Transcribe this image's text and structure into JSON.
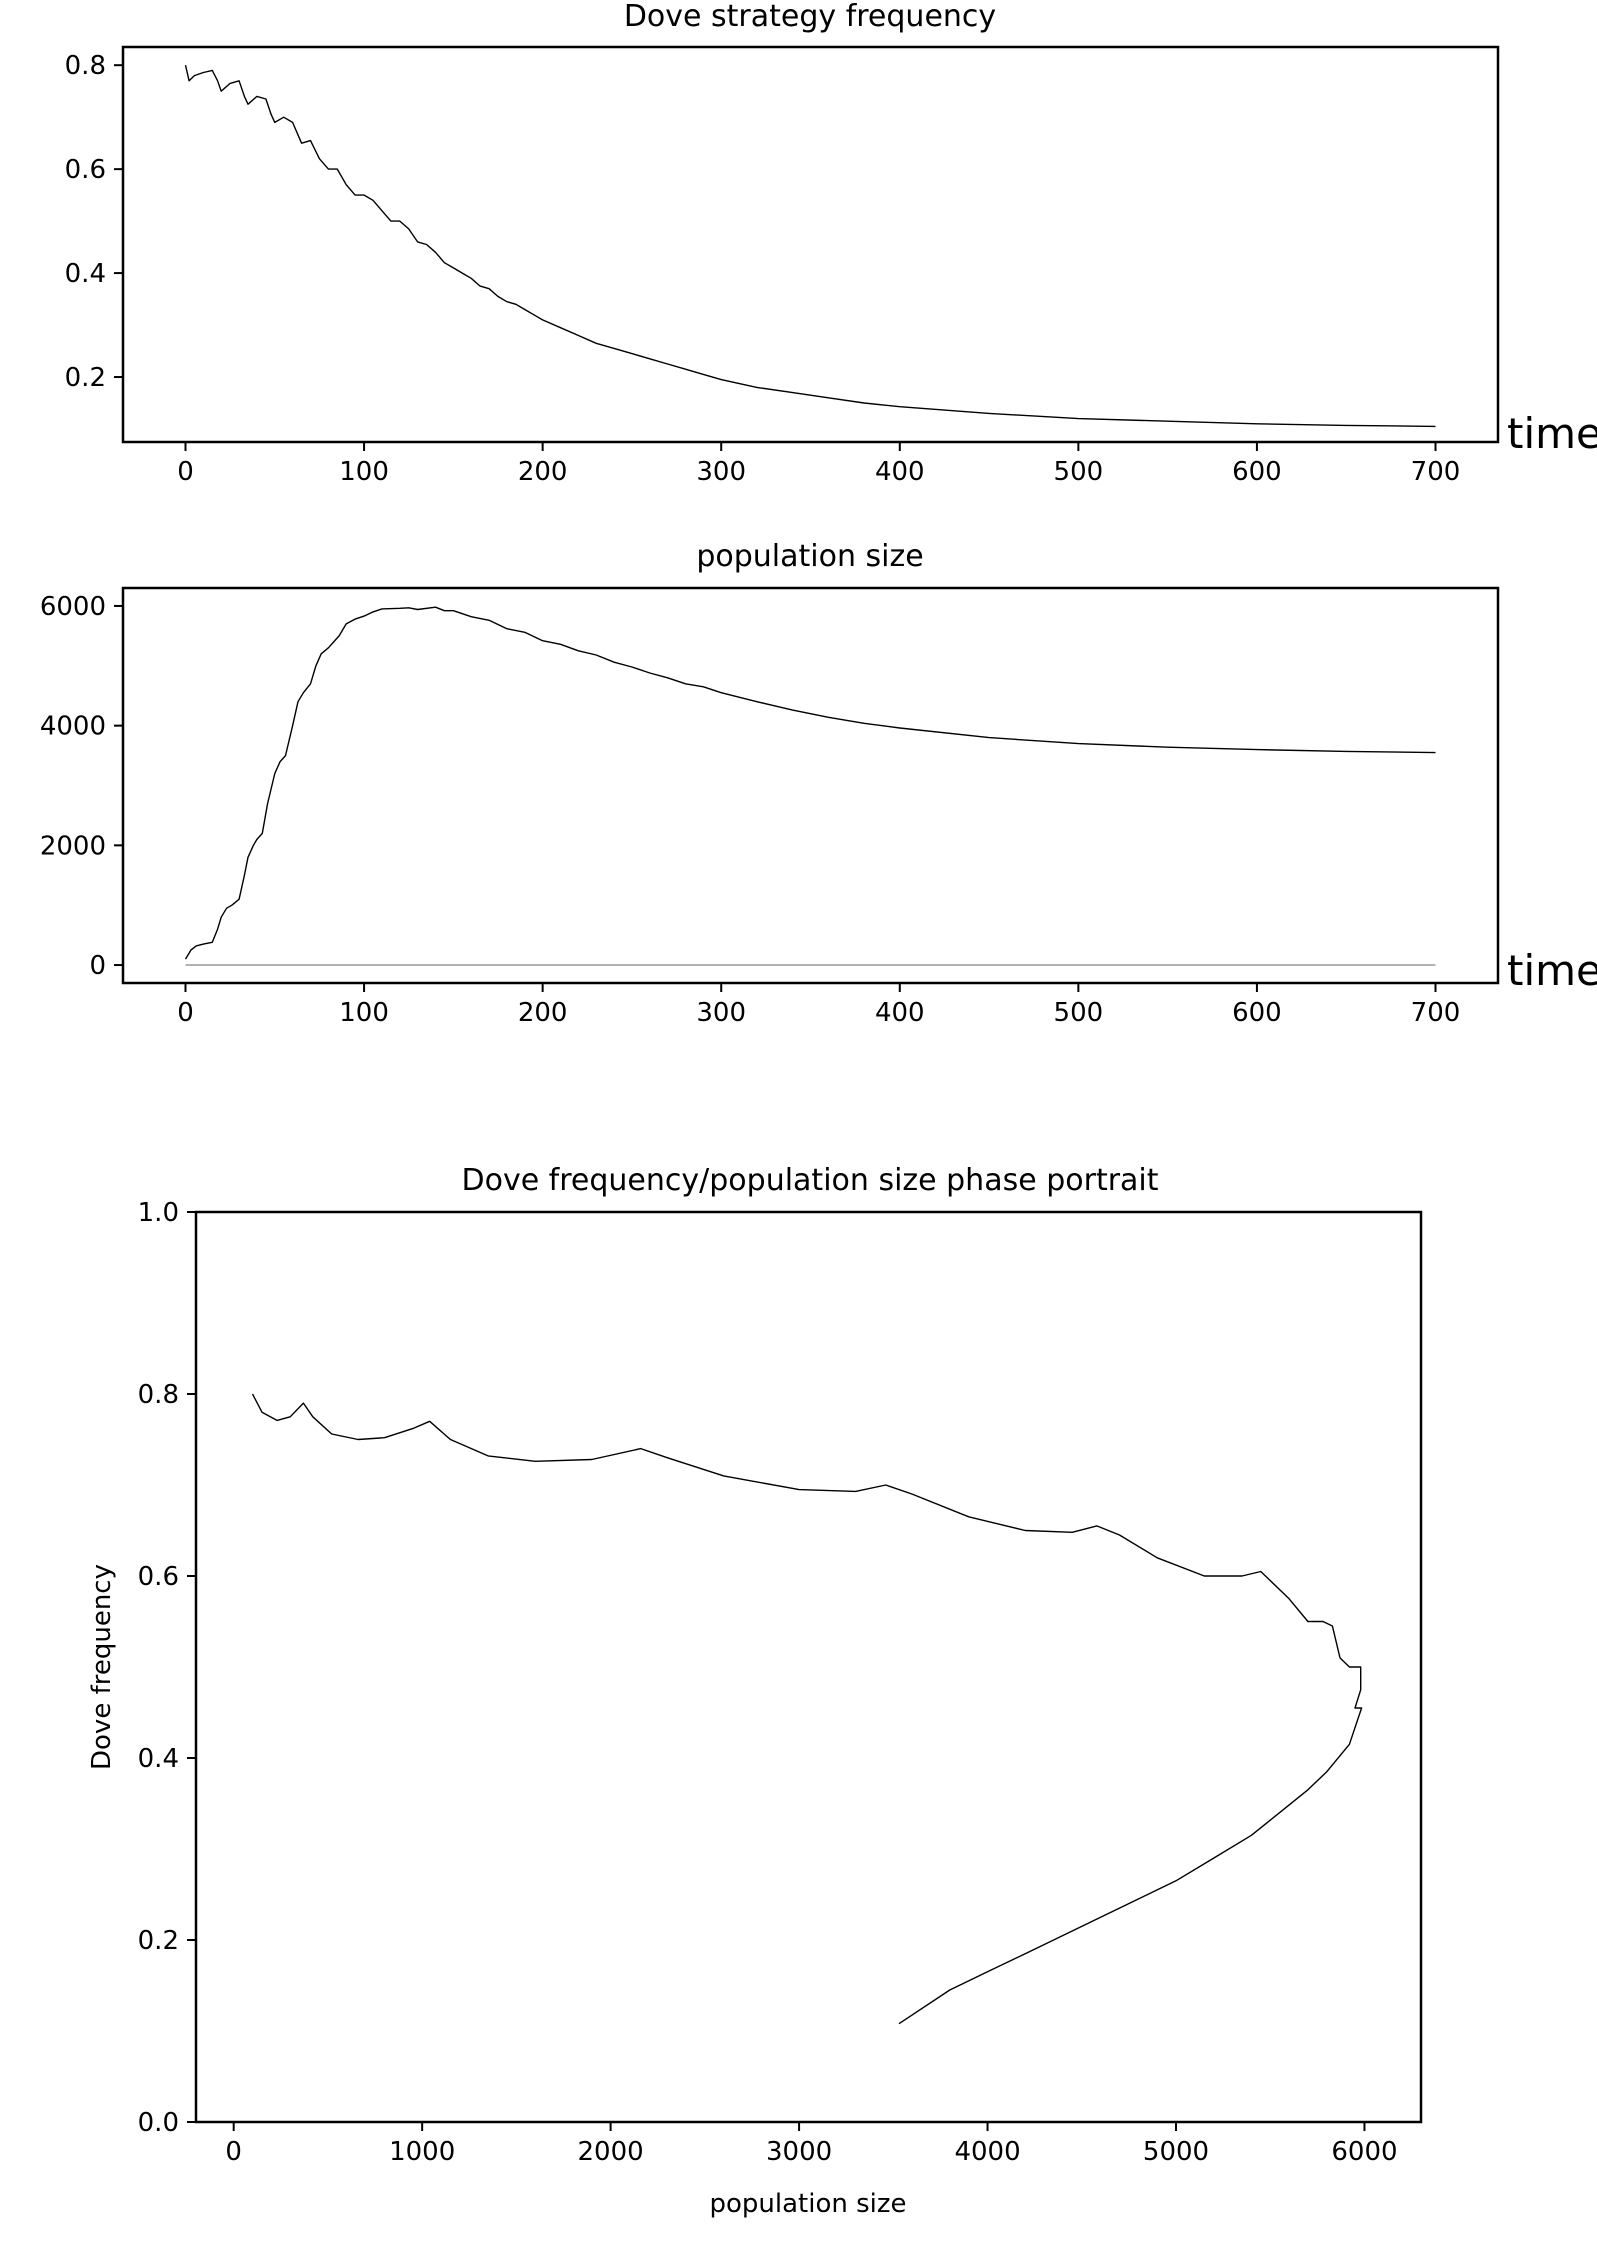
{
  "chart_data": [
    {
      "type": "line",
      "title": "Dove strategy frequency",
      "xlabel": "time",
      "ylabel": "",
      "xlim": [
        -35,
        735
      ],
      "ylim": [
        0.075,
        0.835
      ],
      "xticks": [
        0,
        100,
        200,
        300,
        400,
        500,
        600,
        700
      ],
      "yticks": [
        0.2,
        0.4,
        0.6,
        0.8
      ],
      "xtick_labels": [
        "0",
        "100",
        "200",
        "300",
        "400",
        "500",
        "600",
        "700"
      ],
      "ytick_labels": [
        "0.2",
        "0.4",
        "0.6",
        "0.8"
      ],
      "grid": false,
      "line_color": "#000000",
      "series": [
        {
          "x": [
            0,
            2,
            5,
            10,
            15,
            18,
            20,
            25,
            30,
            33,
            35,
            40,
            45,
            48,
            50,
            55,
            60,
            65,
            70,
            75,
            80,
            85,
            90,
            95,
            100,
            105,
            110,
            115,
            120,
            125,
            130,
            135,
            140,
            145,
            150,
            155,
            160,
            165,
            170,
            175,
            180,
            185,
            190,
            195,
            200,
            210,
            220,
            230,
            240,
            250,
            260,
            270,
            280,
            290,
            300,
            320,
            340,
            360,
            380,
            400,
            450,
            500,
            550,
            600,
            650,
            700
          ],
          "y": [
            0.8,
            0.77,
            0.78,
            0.786,
            0.79,
            0.77,
            0.75,
            0.765,
            0.77,
            0.74,
            0.725,
            0.74,
            0.735,
            0.705,
            0.69,
            0.7,
            0.69,
            0.65,
            0.655,
            0.62,
            0.6,
            0.6,
            0.57,
            0.55,
            0.55,
            0.54,
            0.52,
            0.5,
            0.5,
            0.485,
            0.46,
            0.455,
            0.44,
            0.42,
            0.41,
            0.4,
            0.39,
            0.375,
            0.37,
            0.355,
            0.345,
            0.34,
            0.33,
            0.32,
            0.31,
            0.295,
            0.28,
            0.265,
            0.255,
            0.245,
            0.235,
            0.225,
            0.215,
            0.205,
            0.195,
            0.18,
            0.17,
            0.16,
            0.15,
            0.143,
            0.13,
            0.12,
            0.115,
            0.11,
            0.107,
            0.105
          ]
        }
      ]
    },
    {
      "type": "line",
      "title": "population size",
      "xlabel": "time",
      "ylabel": "",
      "xlim": [
        -35,
        735
      ],
      "ylim": [
        -300,
        6300
      ],
      "xticks": [
        0,
        100,
        200,
        300,
        400,
        500,
        600,
        700
      ],
      "yticks": [
        0,
        2000,
        4000,
        6000
      ],
      "xtick_labels": [
        "0",
        "100",
        "200",
        "300",
        "400",
        "500",
        "600",
        "700"
      ],
      "ytick_labels": [
        "0",
        "2000",
        "4000",
        "6000"
      ],
      "grid": false,
      "line_color": "#000000",
      "baseline_color": "#999999",
      "baseline_value": 0,
      "series": [
        {
          "x": [
            0,
            3,
            6,
            10,
            15,
            18,
            20,
            23,
            26,
            30,
            33,
            35,
            38,
            40,
            43,
            46,
            50,
            53,
            56,
            60,
            63,
            66,
            70,
            73,
            76,
            80,
            83,
            86,
            90,
            95,
            100,
            105,
            110,
            120,
            125,
            130,
            140,
            145,
            150,
            160,
            170,
            180,
            190,
            200,
            210,
            220,
            230,
            240,
            250,
            260,
            270,
            280,
            290,
            300,
            320,
            340,
            360,
            380,
            400,
            450,
            500,
            550,
            600,
            650,
            700
          ],
          "y": [
            100,
            250,
            320,
            350,
            380,
            600,
            800,
            950,
            1000,
            1100,
            1500,
            1800,
            2000,
            2100,
            2200,
            2700,
            3200,
            3400,
            3500,
            4000,
            4400,
            4550,
            4700,
            5000,
            5200,
            5300,
            5400,
            5500,
            5700,
            5780,
            5830,
            5900,
            5950,
            5960,
            5970,
            5940,
            5980,
            5920,
            5920,
            5820,
            5760,
            5620,
            5560,
            5420,
            5360,
            5250,
            5180,
            5060,
            4980,
            4880,
            4800,
            4700,
            4650,
            4550,
            4400,
            4260,
            4140,
            4040,
            3960,
            3800,
            3700,
            3640,
            3600,
            3570,
            3550
          ]
        }
      ]
    },
    {
      "type": "line",
      "title": "Dove frequency/population size phase portrait",
      "xlabel": "population size",
      "ylabel": "Dove frequency",
      "xlim": [
        -200,
        6300
      ],
      "ylim": [
        0,
        1.0
      ],
      "xticks": [
        0,
        1000,
        2000,
        3000,
        4000,
        5000,
        6000
      ],
      "yticks": [
        0.0,
        0.2,
        0.4,
        0.6,
        0.8,
        1.0
      ],
      "xtick_labels": [
        "0",
        "1000",
        "2000",
        "3000",
        "4000",
        "5000",
        "6000"
      ],
      "ytick_labels": [
        "0.0",
        "0.2",
        "0.4",
        "0.6",
        "0.8",
        "1.0"
      ],
      "grid": false,
      "line_color": "#000000",
      "series": [
        {
          "x": [
            100,
            150,
            230,
            300,
            370,
            420,
            520,
            660,
            800,
            950,
            1040,
            1150,
            1350,
            1600,
            1900,
            2160,
            2300,
            2600,
            3000,
            3300,
            3460,
            3600,
            3900,
            4200,
            4450,
            4580,
            4700,
            4900,
            5150,
            5350,
            5450,
            5600,
            5700,
            5780,
            5830,
            5870,
            5920,
            5980,
            5980,
            5950,
            5985,
            5920,
            5900,
            5800,
            5700,
            5550,
            5400,
            5200,
            5000,
            4800,
            4600,
            4400,
            4200,
            4000,
            3800,
            3530
          ],
          "y": [
            0.8,
            0.78,
            0.771,
            0.775,
            0.79,
            0.775,
            0.756,
            0.75,
            0.752,
            0.762,
            0.77,
            0.75,
            0.732,
            0.726,
            0.728,
            0.74,
            0.73,
            0.71,
            0.695,
            0.693,
            0.7,
            0.69,
            0.665,
            0.65,
            0.648,
            0.655,
            0.645,
            0.62,
            0.6,
            0.6,
            0.605,
            0.575,
            0.55,
            0.55,
            0.545,
            0.51,
            0.5,
            0.5,
            0.475,
            0.455,
            0.455,
            0.415,
            0.41,
            0.385,
            0.365,
            0.34,
            0.315,
            0.29,
            0.265,
            0.245,
            0.225,
            0.205,
            0.185,
            0.165,
            0.145,
            0.108
          ]
        }
      ]
    }
  ]
}
